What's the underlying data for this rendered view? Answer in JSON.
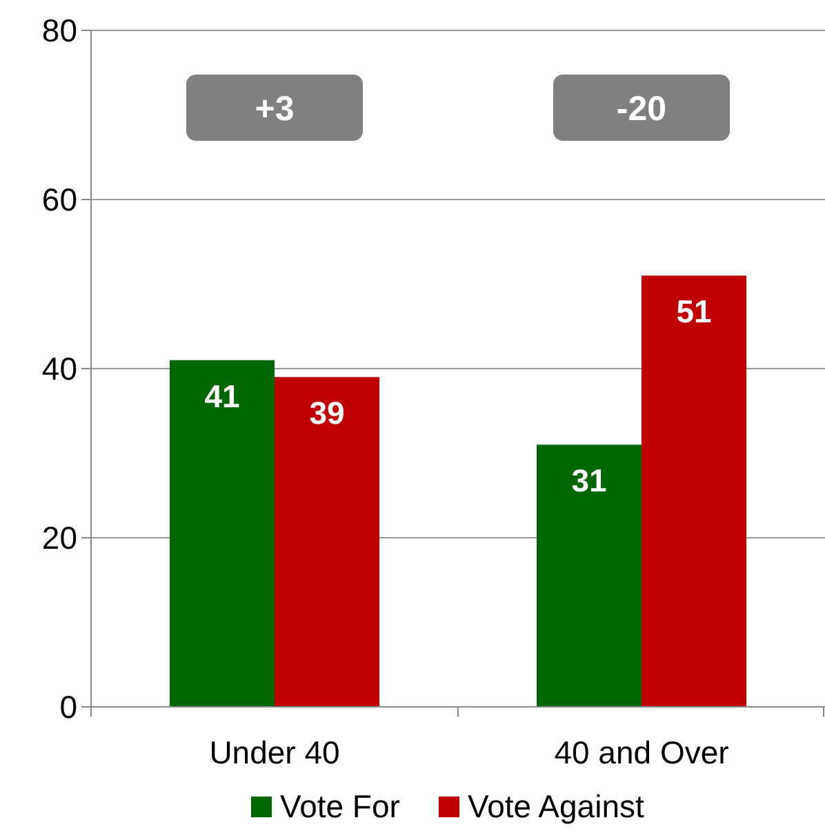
{
  "chart_data": {
    "type": "bar",
    "categories": [
      "Under 40",
      "40 and Over"
    ],
    "series": [
      {
        "name": "Vote For",
        "color": "#006600",
        "values": [
          41,
          31
        ]
      },
      {
        "name": "Vote Against",
        "color": "#c00000",
        "values": [
          39,
          51
        ]
      }
    ],
    "ylim": [
      0,
      80
    ],
    "yticks": [
      0,
      20,
      40,
      60,
      80
    ],
    "grid": "y",
    "legend": "bottom",
    "data_labels": true,
    "annotations": [
      "+3",
      "-20"
    ]
  }
}
